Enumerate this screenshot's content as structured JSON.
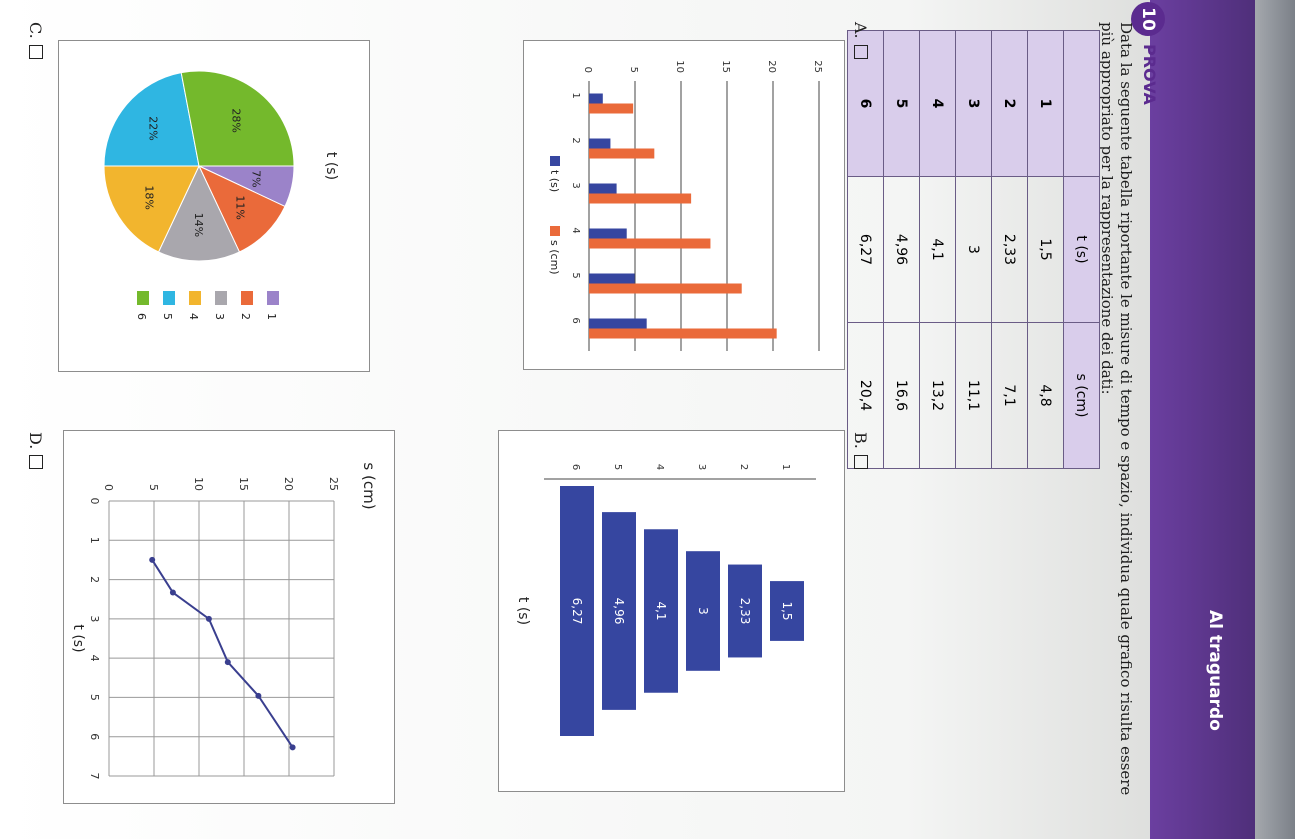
{
  "header": {
    "title": "Al traguardo"
  },
  "exercise": {
    "number": "10",
    "label": "PROVA",
    "question": "Data la seguente tabella riportante le misure di tempo e spazio, individua quale grafico risulta essere più appropriato per la rappresentazione dei dati:"
  },
  "table": {
    "headers": [
      "",
      "t (s)",
      "s (cm)"
    ],
    "rows": [
      [
        "1",
        "1,5",
        "4,8"
      ],
      [
        "2",
        "2,33",
        "7,1"
      ],
      [
        "3",
        "3",
        "11,1"
      ],
      [
        "4",
        "4,1",
        "13,2"
      ],
      [
        "5",
        "4,96",
        "16,6"
      ],
      [
        "6",
        "6,27",
        "20,4"
      ]
    ]
  },
  "options": {
    "A": {
      "label": "A."
    },
    "B": {
      "label": "B."
    },
    "C": {
      "label": "C."
    },
    "D": {
      "label": "D."
    }
  },
  "colors": {
    "t_series": "#3646a0",
    "s_series": "#ea6a3a",
    "purple": "#5b2b8f"
  },
  "chart_data": [
    {
      "option": "A",
      "type": "bar",
      "categories": [
        "1",
        "2",
        "3",
        "4",
        "5",
        "6"
      ],
      "series": [
        {
          "name": "t (s)",
          "values": [
            1.5,
            2.33,
            3,
            4.1,
            4.96,
            6.27
          ],
          "color": "#3646a0"
        },
        {
          "name": "s (cm)",
          "values": [
            4.8,
            7.1,
            11.1,
            13.2,
            16.6,
            20.4
          ],
          "color": "#ea6a3a"
        }
      ],
      "yticks": [
        "0",
        "5",
        "10",
        "15",
        "20",
        "25"
      ],
      "ylim": [
        0,
        25
      ],
      "legend": "bottom",
      "grid": true
    },
    {
      "option": "B",
      "type": "bar",
      "title": "t (s)",
      "categories": [
        "1",
        "2",
        "3",
        "4",
        "5",
        "6"
      ],
      "values": [
        1.5,
        2.33,
        3,
        4.1,
        4.96,
        6.27
      ],
      "data_labels": [
        "1,5",
        "2,33",
        "3",
        "4,1",
        "4,96",
        "6,27"
      ],
      "color": "#3646a0",
      "orientation": "horizontal-centered"
    },
    {
      "option": "C",
      "type": "pie",
      "title": "t (s)",
      "labels": [
        "1",
        "2",
        "3",
        "4",
        "5",
        "6"
      ],
      "values": [
        7,
        11,
        14,
        18,
        22,
        28
      ],
      "data_labels": [
        "7%",
        "11%",
        "14%",
        "18%",
        "22%",
        "28%"
      ],
      "colors": [
        "#9b83c9",
        "#ea6a3a",
        "#a9a7ad",
        "#f2b52e",
        "#2fb6e2",
        "#74b92c"
      ],
      "legend": "right"
    },
    {
      "option": "D",
      "type": "line",
      "x": [
        1.5,
        2.33,
        3,
        4.1,
        4.96,
        6.27
      ],
      "y": [
        4.8,
        7.1,
        11.1,
        13.2,
        16.6,
        20.4
      ],
      "xlabel": "t (s)",
      "ylabel": "s (cm)",
      "xticks": [
        "0",
        "1",
        "2",
        "3",
        "4",
        "5",
        "6",
        "7"
      ],
      "yticks": [
        "0",
        "5",
        "10",
        "15",
        "20",
        "25"
      ],
      "xlim": [
        0,
        7
      ],
      "ylim": [
        0,
        25
      ],
      "color": "#3a3f8f",
      "grid": true
    }
  ]
}
